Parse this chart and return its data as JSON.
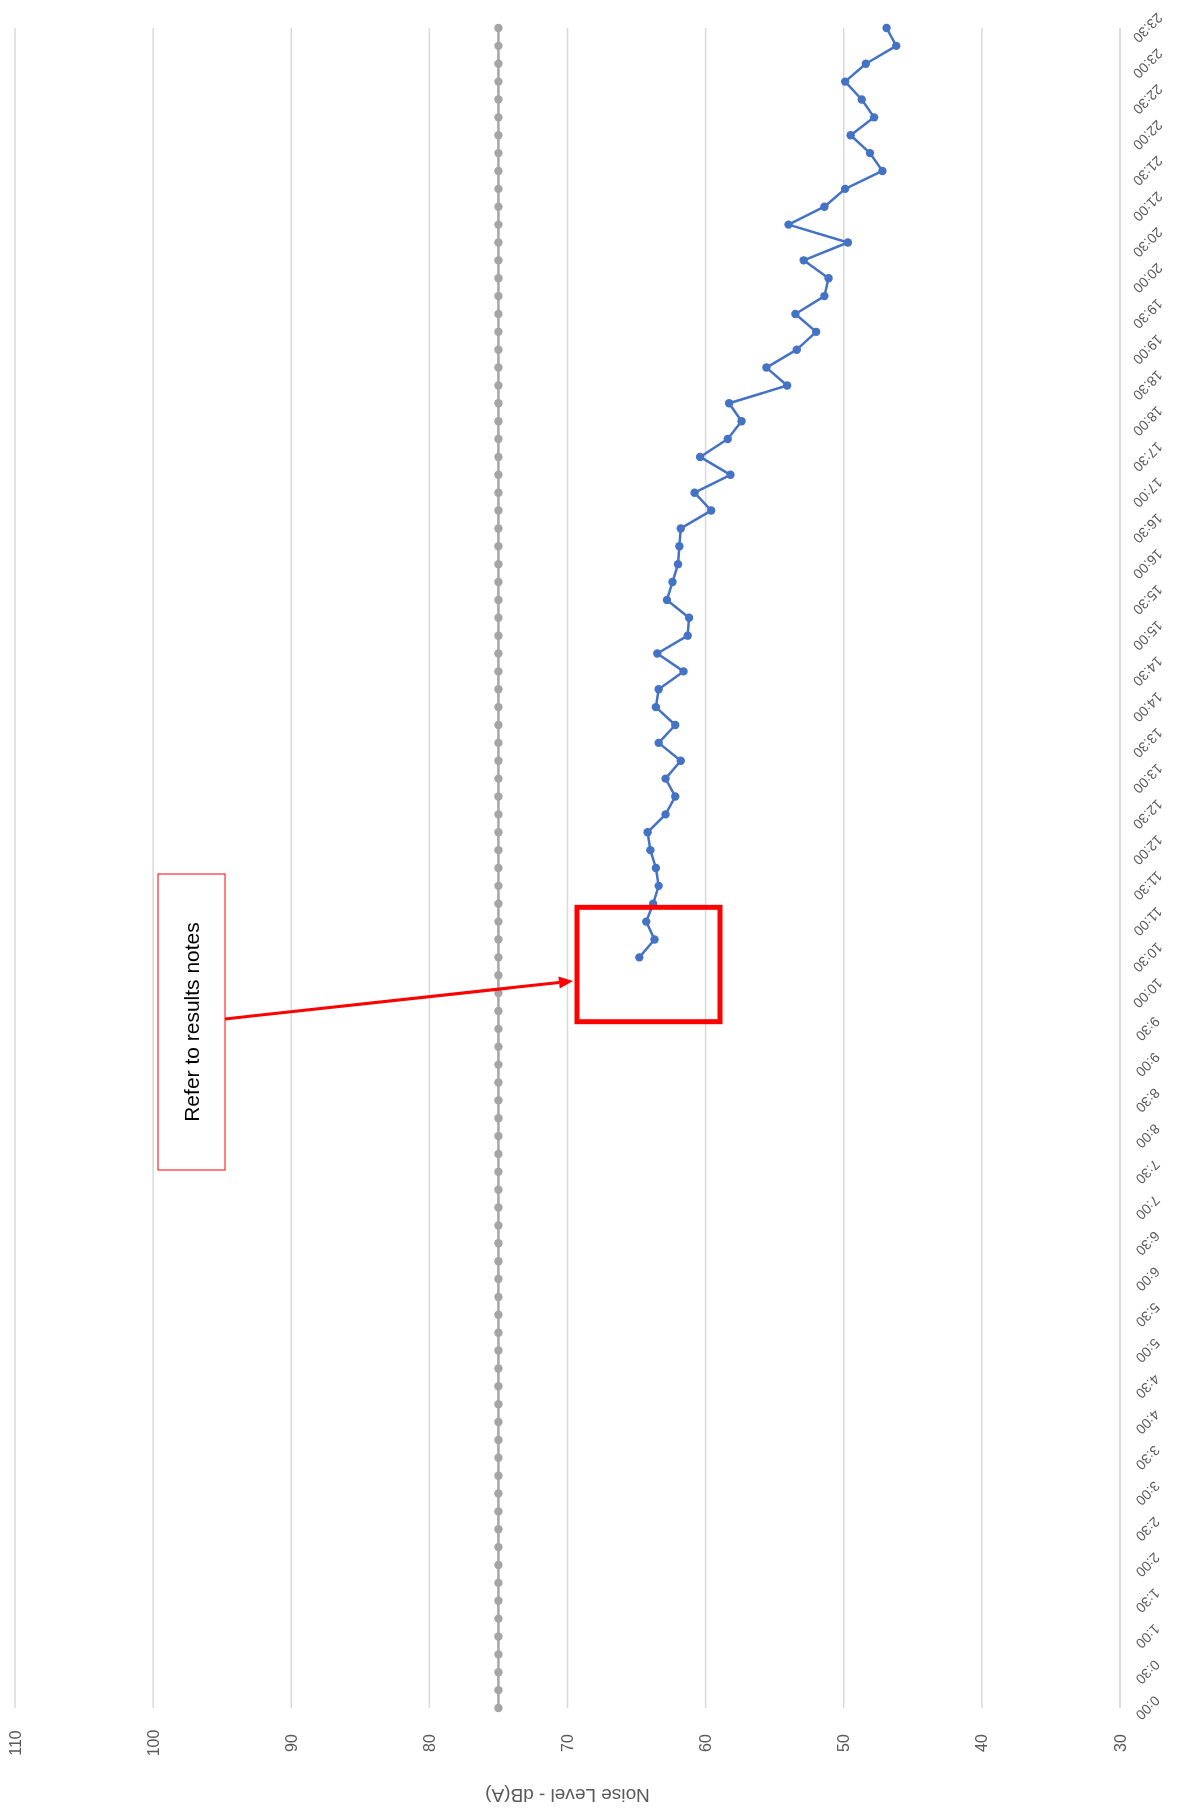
{
  "chart_data": {
    "type": "line",
    "xlabel": "Noise Level - dB(A)",
    "xlim": [
      110,
      30
    ],
    "xticks": [
      110,
      100,
      90,
      80,
      70,
      60,
      50,
      40,
      30
    ],
    "ylim": [
      0,
      23.5
    ],
    "yticks": [
      {
        "value": 0,
        "label": "0:00"
      },
      {
        "value": 0.5,
        "label": "0:30"
      },
      {
        "value": 1,
        "label": "1:00"
      },
      {
        "value": 1.5,
        "label": "1:30"
      },
      {
        "value": 2,
        "label": "2:00"
      },
      {
        "value": 2.5,
        "label": "2:30"
      },
      {
        "value": 3,
        "label": "3:00"
      },
      {
        "value": 3.5,
        "label": "3:30"
      },
      {
        "value": 4,
        "label": "4:00"
      },
      {
        "value": 4.5,
        "label": "4:30"
      },
      {
        "value": 5,
        "label": "5:00"
      },
      {
        "value": 5.5,
        "label": "5:30"
      },
      {
        "value": 6,
        "label": "6:00"
      },
      {
        "value": 6.5,
        "label": "6:30"
      },
      {
        "value": 7,
        "label": "7:00"
      },
      {
        "value": 7.5,
        "label": "7:30"
      },
      {
        "value": 8,
        "label": "8:00"
      },
      {
        "value": 8.5,
        "label": "8:30"
      },
      {
        "value": 9,
        "label": "9:00"
      },
      {
        "value": 9.5,
        "label": "9:30"
      },
      {
        "value": 10,
        "label": "10:00"
      },
      {
        "value": 10.5,
        "label": "10:30"
      },
      {
        "value": 11,
        "label": "11:00"
      },
      {
        "value": 11.5,
        "label": "11:30"
      },
      {
        "value": 12,
        "label": "12:00"
      },
      {
        "value": 12.5,
        "label": "12:30"
      },
      {
        "value": 13,
        "label": "13:00"
      },
      {
        "value": 13.5,
        "label": "13:30"
      },
      {
        "value": 14,
        "label": "14:00"
      },
      {
        "value": 14.5,
        "label": "14:30"
      },
      {
        "value": 15,
        "label": "15:00"
      },
      {
        "value": 15.5,
        "label": "15:30"
      },
      {
        "value": 16,
        "label": "16:00"
      },
      {
        "value": 16.5,
        "label": "16:30"
      },
      {
        "value": 17,
        "label": "17:00"
      },
      {
        "value": 17.5,
        "label": "17:30"
      },
      {
        "value": 18,
        "label": "18:00"
      },
      {
        "value": 18.5,
        "label": "18:30"
      },
      {
        "value": 19,
        "label": "19:00"
      },
      {
        "value": 19.5,
        "label": "19:30"
      },
      {
        "value": 20,
        "label": "20:00"
      },
      {
        "value": 20.5,
        "label": "20:30"
      },
      {
        "value": 21,
        "label": "21:00"
      },
      {
        "value": 21.5,
        "label": "21:30"
      },
      {
        "value": 22,
        "label": "22:00"
      },
      {
        "value": 22.5,
        "label": "22:30"
      },
      {
        "value": 23,
        "label": "23:00"
      },
      {
        "value": 23.5,
        "label": "23:30"
      }
    ],
    "grid": "x",
    "marker": "circle",
    "line_style": "solid",
    "annotations": [
      "Refer to results notes"
    ],
    "series": [
      {
        "color": "#a5a5a5",
        "values": [
          0,
          0.25,
          0.5,
          0.75,
          1,
          1.25,
          1.5,
          1.75,
          2,
          2.25,
          2.5,
          2.75,
          3,
          3.25,
          3.5,
          3.75,
          4,
          4.25,
          4.5,
          4.75,
          5,
          5.25,
          5.5,
          5.75,
          6,
          6.25,
          6.5,
          6.75,
          7,
          7.25,
          7.5,
          7.75,
          8,
          8.25,
          8.5,
          8.75,
          9,
          9.25,
          9.5,
          9.75,
          10,
          10.25,
          10.5,
          10.75,
          11,
          11.25,
          11.5,
          11.75,
          12,
          12.25,
          12.5,
          12.75,
          13,
          13.25,
          13.5,
          13.75,
          14,
          14.25,
          14.5,
          14.75,
          15,
          15.25,
          15.5,
          15.75,
          16,
          16.25,
          16.5,
          16.75,
          17,
          17.25,
          17.5,
          17.75,
          18,
          18.25,
          18.5,
          18.75,
          19,
          19.25,
          19.5,
          19.75,
          20,
          20.25,
          20.5,
          20.75,
          21,
          21.25,
          21.5,
          21.75,
          22,
          22.25,
          22.5,
          22.75,
          23,
          23.25,
          23.5
        ],
        "x": [
          75,
          75,
          75,
          75,
          75,
          75,
          75,
          75,
          75,
          75,
          75,
          75,
          75,
          75,
          75,
          75,
          75,
          75,
          75,
          75,
          75,
          75,
          75,
          75,
          75,
          75,
          75,
          75,
          75,
          75,
          75,
          75,
          75,
          75,
          75,
          75,
          75,
          75,
          75,
          75,
          75,
          75,
          75,
          75,
          75,
          75,
          75,
          75,
          75,
          75,
          75,
          75,
          75,
          75,
          75,
          75,
          75,
          75,
          75,
          75,
          75,
          75,
          75,
          75,
          75,
          75,
          75,
          75,
          75,
          75,
          75,
          75,
          75,
          75,
          75,
          75,
          75,
          75,
          75,
          75,
          75,
          75,
          75,
          75,
          75,
          75,
          75,
          75,
          75,
          75,
          75,
          75,
          75,
          75,
          75
        ]
      },
      {
        "color": "#4472c4",
        "values": [
          10.5,
          10.75,
          11,
          11.25,
          11.5,
          11.75,
          12,
          12.25,
          12.5,
          12.75,
          13,
          13.25,
          13.5,
          13.75,
          14,
          14.25,
          14.5,
          14.75,
          15,
          15.25,
          15.5,
          15.75,
          16,
          16.25,
          16.5,
          16.75,
          17,
          17.25,
          17.5,
          17.75,
          18,
          18.25,
          18.5,
          18.75,
          19,
          19.25,
          19.5,
          19.75,
          20,
          20.25,
          20.5,
          20.75,
          21,
          21.25,
          21.5,
          21.75,
          22,
          22.25,
          22.5,
          22.75,
          23,
          23.25,
          23.5
        ],
        "x": [
          64.8,
          63.7,
          64.3,
          63.8,
          63.4,
          63.6,
          64.0,
          64.2,
          62.9,
          62.2,
          62.9,
          61.8,
          63.4,
          62.2,
          63.6,
          63.4,
          61.6,
          63.5,
          61.3,
          61.2,
          62.8,
          62.4,
          62.0,
          61.9,
          61.8,
          59.6,
          60.8,
          58.2,
          60.4,
          58.4,
          57.4,
          58.3,
          54.1,
          55.6,
          53.4,
          52.0,
          53.5,
          51.4,
          51.1,
          52.9,
          49.7,
          54.0,
          51.4,
          49.9,
          47.2,
          48.1,
          49.5,
          47.8,
          48.7,
          49.9,
          48.4,
          46.2,
          46.9
        ]
      }
    ]
  }
}
